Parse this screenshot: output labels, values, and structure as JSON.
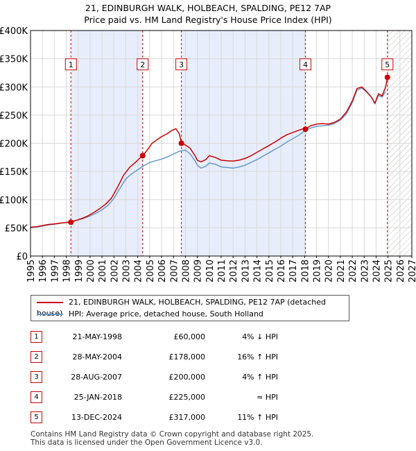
{
  "title_line1": "21, EDINBURGH WALK, HOLBEACH, SPALDING, PE12 7AP",
  "title_line2": "Price paid vs. HM Land Registry's House Price Index (HPI)",
  "chart_data": {
    "type": "line",
    "xlabel": "",
    "ylabel": "",
    "x_range": [
      1995,
      2027
    ],
    "y_range": [
      0,
      400000
    ],
    "x_ticks": [
      "1995",
      "1996",
      "1997",
      "1998",
      "1999",
      "2000",
      "2001",
      "2002",
      "2003",
      "2004",
      "2005",
      "2006",
      "2007",
      "2008",
      "2009",
      "2010",
      "2011",
      "2012",
      "2013",
      "2014",
      "2015",
      "2016",
      "2017",
      "2018",
      "2019",
      "2020",
      "2021",
      "2022",
      "2023",
      "2024",
      "2025",
      "2026",
      "2027"
    ],
    "y_ticks": [
      {
        "value": 0,
        "label": "£0"
      },
      {
        "value": 50000,
        "label": "£50K"
      },
      {
        "value": 100000,
        "label": "£100K"
      },
      {
        "value": 150000,
        "label": "£150K"
      },
      {
        "value": 200000,
        "label": "£200K"
      },
      {
        "value": 250000,
        "label": "£250K"
      },
      {
        "value": 300000,
        "label": "£300K"
      },
      {
        "value": 350000,
        "label": "£350K"
      },
      {
        "value": 400000,
        "label": "£400K"
      }
    ],
    "hatched_from_year": 2025.0,
    "shaded_periods": [
      [
        1998.39,
        2004.41
      ],
      [
        2007.66,
        2018.07
      ]
    ],
    "series": [
      {
        "name": "21, EDINBURGH WALK, HOLBEACH, SPALDING, PE12 7AP (detached house)",
        "color": "#cc0000",
        "x": [
          1995.0,
          1995.5,
          1996.0,
          1996.5,
          1997.0,
          1997.5,
          1998.0,
          1998.39,
          1998.8,
          1999.3,
          1999.8,
          2000.3,
          2000.8,
          2001.3,
          2001.8,
          2002.3,
          2002.8,
          2003.3,
          2003.8,
          2004.3,
          2004.41,
          2004.8,
          2005.2,
          2005.6,
          2006.0,
          2006.4,
          2006.8,
          2007.2,
          2007.5,
          2007.66,
          2008.0,
          2008.4,
          2008.8,
          2009.0,
          2009.3,
          2009.7,
          2010.0,
          2010.5,
          2011.0,
          2011.5,
          2012.0,
          2012.5,
          2013.0,
          2013.5,
          2014.0,
          2014.5,
          2015.0,
          2015.5,
          2016.0,
          2016.5,
          2017.0,
          2017.5,
          2017.9,
          2018.07,
          2018.5,
          2019.0,
          2019.5,
          2020.0,
          2020.5,
          2021.0,
          2021.5,
          2022.0,
          2022.4,
          2022.8,
          2023.2,
          2023.6,
          2023.9,
          2024.2,
          2024.5,
          2024.8,
          2024.95,
          2025.1
        ],
        "values": [
          51000,
          52000,
          54000,
          56000,
          57000,
          58500,
          59500,
          60000,
          63000,
          66500,
          71000,
          77000,
          84000,
          92000,
          103000,
          122000,
          143000,
          157000,
          166000,
          176000,
          178000,
          188000,
          200000,
          206000,
          212000,
          216000,
          222000,
          226000,
          216000,
          200000,
          197000,
          191000,
          178000,
          170000,
          167000,
          171000,
          178000,
          175000,
          170000,
          169000,
          168500,
          170000,
          173000,
          178000,
          184000,
          190000,
          196000,
          202000,
          209000,
          215000,
          219000,
          223000,
          226000,
          225000,
          231000,
          234000,
          235000,
          234000,
          237000,
          243000,
          255000,
          275000,
          297000,
          300000,
          292000,
          282000,
          271000,
          288000,
          284000,
          300000,
          317000,
          316000
        ]
      },
      {
        "name": "HPI: Average price, detached house, South Holland",
        "color": "#6699cc",
        "x": [
          1995.0,
          1995.5,
          1996.0,
          1996.5,
          1997.0,
          1997.5,
          1998.0,
          1998.5,
          1999.0,
          1999.5,
          2000.0,
          2000.5,
          2001.0,
          2001.5,
          2002.0,
          2002.5,
          2003.0,
          2003.5,
          2004.0,
          2004.5,
          2005.0,
          2005.5,
          2006.0,
          2006.5,
          2007.0,
          2007.5,
          2008.0,
          2008.4,
          2008.8,
          2009.0,
          2009.3,
          2009.7,
          2010.0,
          2010.5,
          2011.0,
          2011.5,
          2012.0,
          2012.5,
          2013.0,
          2013.5,
          2014.0,
          2014.5,
          2015.0,
          2015.5,
          2016.0,
          2016.5,
          2017.0,
          2017.5,
          2018.0,
          2018.5,
          2019.0,
          2019.5,
          2020.0,
          2020.5,
          2021.0,
          2021.5,
          2022.0,
          2022.4,
          2022.8,
          2023.2,
          2023.6,
          2023.9,
          2024.2,
          2024.5,
          2024.8
        ],
        "values": [
          50000,
          51500,
          53000,
          55000,
          56500,
          58000,
          60000,
          62000,
          64000,
          67000,
          71000,
          76000,
          82000,
          90000,
          102000,
          120000,
          137000,
          146000,
          153000,
          160000,
          166000,
          169000,
          172000,
          176000,
          181000,
          186000,
          188000,
          181000,
          169000,
          161000,
          156000,
          159000,
          165000,
          163000,
          158000,
          157000,
          156000,
          158000,
          161000,
          166000,
          171000,
          177000,
          183000,
          189000,
          195000,
          202000,
          208000,
          214000,
          222000,
          227000,
          230000,
          231000,
          232000,
          235000,
          241000,
          252000,
          272000,
          294000,
          298000,
          291000,
          282000,
          270000,
          285000,
          282000,
          292000
        ]
      }
    ],
    "sales": [
      {
        "n": "1",
        "x": 1998.39,
        "value": 60000
      },
      {
        "n": "2",
        "x": 2004.41,
        "value": 178000
      },
      {
        "n": "3",
        "x": 2007.66,
        "value": 200000
      },
      {
        "n": "4",
        "x": 2018.07,
        "value": 225000
      },
      {
        "n": "5",
        "x": 2024.95,
        "value": 317000
      }
    ],
    "marker_label_value": 340000
  },
  "legend": {
    "red_label": "21, EDINBURGH WALK, HOLBEACH, SPALDING, PE12 7AP (detached house)",
    "blue_label": "HPI: Average price, detached house, South Holland"
  },
  "table": [
    {
      "n": "1",
      "date": "21-MAY-1998",
      "price": "£60,000",
      "hpi": "4% ↓ HPI"
    },
    {
      "n": "2",
      "date": "28-MAY-2004",
      "price": "£178,000",
      "hpi": "16% ↑ HPI"
    },
    {
      "n": "3",
      "date": "28-AUG-2007",
      "price": "£200,000",
      "hpi": "4% ↑ HPI"
    },
    {
      "n": "4",
      "date": "25-JAN-2018",
      "price": "£225,000",
      "hpi": "≈ HPI"
    },
    {
      "n": "5",
      "date": "13-DEC-2024",
      "price": "£317,000",
      "hpi": "11% ↑ HPI"
    }
  ],
  "footer_line1": "Contains HM Land Registry data © Crown copyright and database right 2025.",
  "footer_line2": "This data is licensed under the Open Government Licence v3.0."
}
